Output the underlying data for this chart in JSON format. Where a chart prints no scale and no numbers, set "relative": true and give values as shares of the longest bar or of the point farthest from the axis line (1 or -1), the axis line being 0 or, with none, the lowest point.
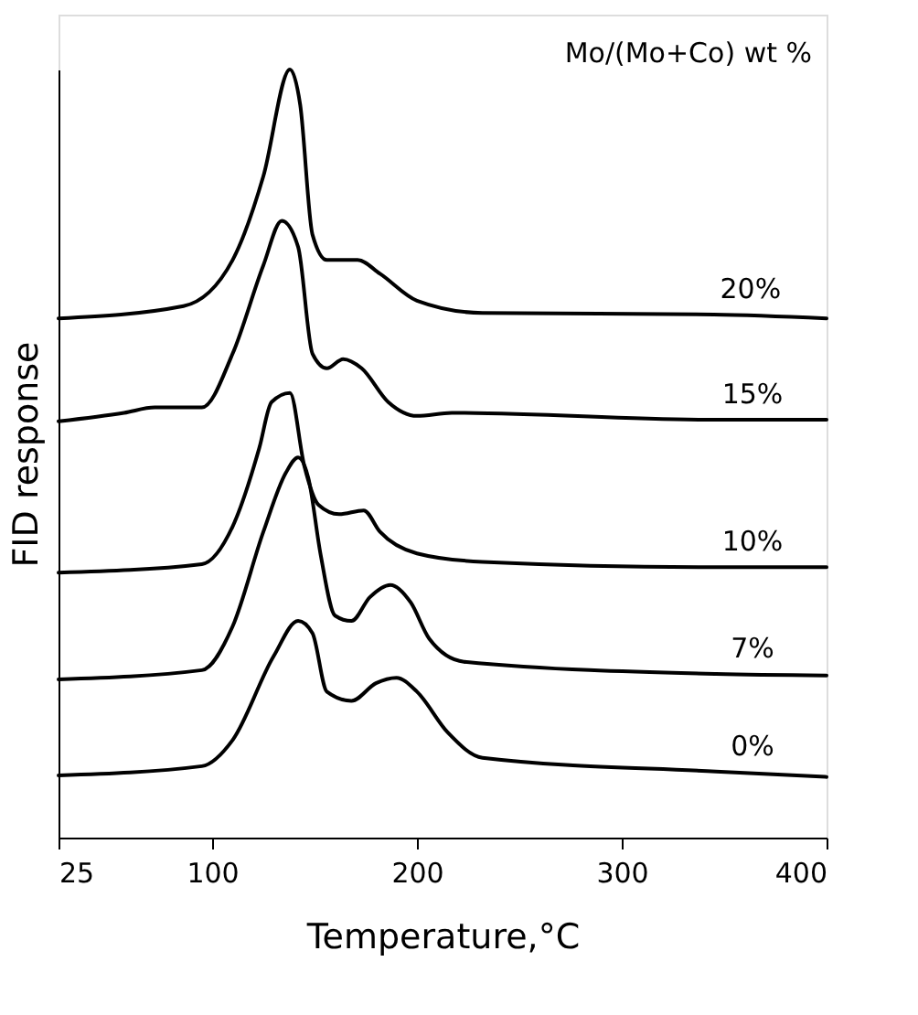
{
  "chart_data": {
    "type": "line",
    "relative": true,
    "xlabel": "Temperature,°C",
    "ylabel": "FID response",
    "legend_title": "Mo/(Mo+Co) wt %",
    "xlim": [
      25,
      400
    ],
    "xticks": [
      25,
      100,
      200,
      300,
      400
    ],
    "grid": false,
    "marker": "none",
    "line_style": "solid",
    "series": [
      {
        "name": "20%",
        "color": "#000000",
        "x": [
          25,
          86,
          110,
          125,
          138,
          143,
          149,
          156,
          171,
          182,
          200,
          232,
          345,
          400
        ],
        "values": [
          0.676,
          0.692,
          0.752,
          0.861,
          1.0,
          0.954,
          0.785,
          0.752,
          0.752,
          0.734,
          0.699,
          0.683,
          0.681,
          0.676
        ]
      },
      {
        "name": "15%",
        "color": "#000000",
        "x": [
          25,
          57,
          72,
          95,
          110,
          125,
          134,
          142,
          149,
          156,
          164,
          173,
          186,
          200,
          217,
          346,
          400
        ],
        "values": [
          0.542,
          0.553,
          0.56,
          0.56,
          0.63,
          0.745,
          0.803,
          0.769,
          0.63,
          0.611,
          0.623,
          0.611,
          0.567,
          0.549,
          0.553,
          0.544,
          0.544
        ]
      },
      {
        "name": "10%",
        "color": "#000000",
        "x": [
          25,
          95,
          110,
          123,
          129,
          138,
          145,
          152,
          162,
          174,
          182,
          200,
          232,
          346,
          400
        ],
        "values": [
          0.345,
          0.356,
          0.405,
          0.507,
          0.567,
          0.579,
          0.484,
          0.433,
          0.421,
          0.426,
          0.398,
          0.37,
          0.359,
          0.352,
          0.352
        ]
      },
      {
        "name": "7%",
        "color": "#000000",
        "x": [
          25,
          95,
          110,
          125,
          136,
          142,
          147,
          153,
          160,
          168,
          177,
          187,
          197,
          206,
          223,
          346,
          400
        ],
        "values": [
          0.206,
          0.218,
          0.275,
          0.398,
          0.475,
          0.495,
          0.468,
          0.368,
          0.289,
          0.282,
          0.313,
          0.329,
          0.306,
          0.259,
          0.229,
          0.213,
          0.211
        ]
      },
      {
        "name": "0%",
        "color": "#000000",
        "x": [
          25,
          95,
          110,
          130,
          142,
          149,
          156,
          168,
          180,
          190,
          200,
          215,
          232,
          346,
          400
        ],
        "values": [
          0.081,
          0.093,
          0.127,
          0.236,
          0.282,
          0.266,
          0.19,
          0.178,
          0.201,
          0.208,
          0.19,
          0.137,
          0.104,
          0.086,
          0.079
        ]
      }
    ]
  }
}
